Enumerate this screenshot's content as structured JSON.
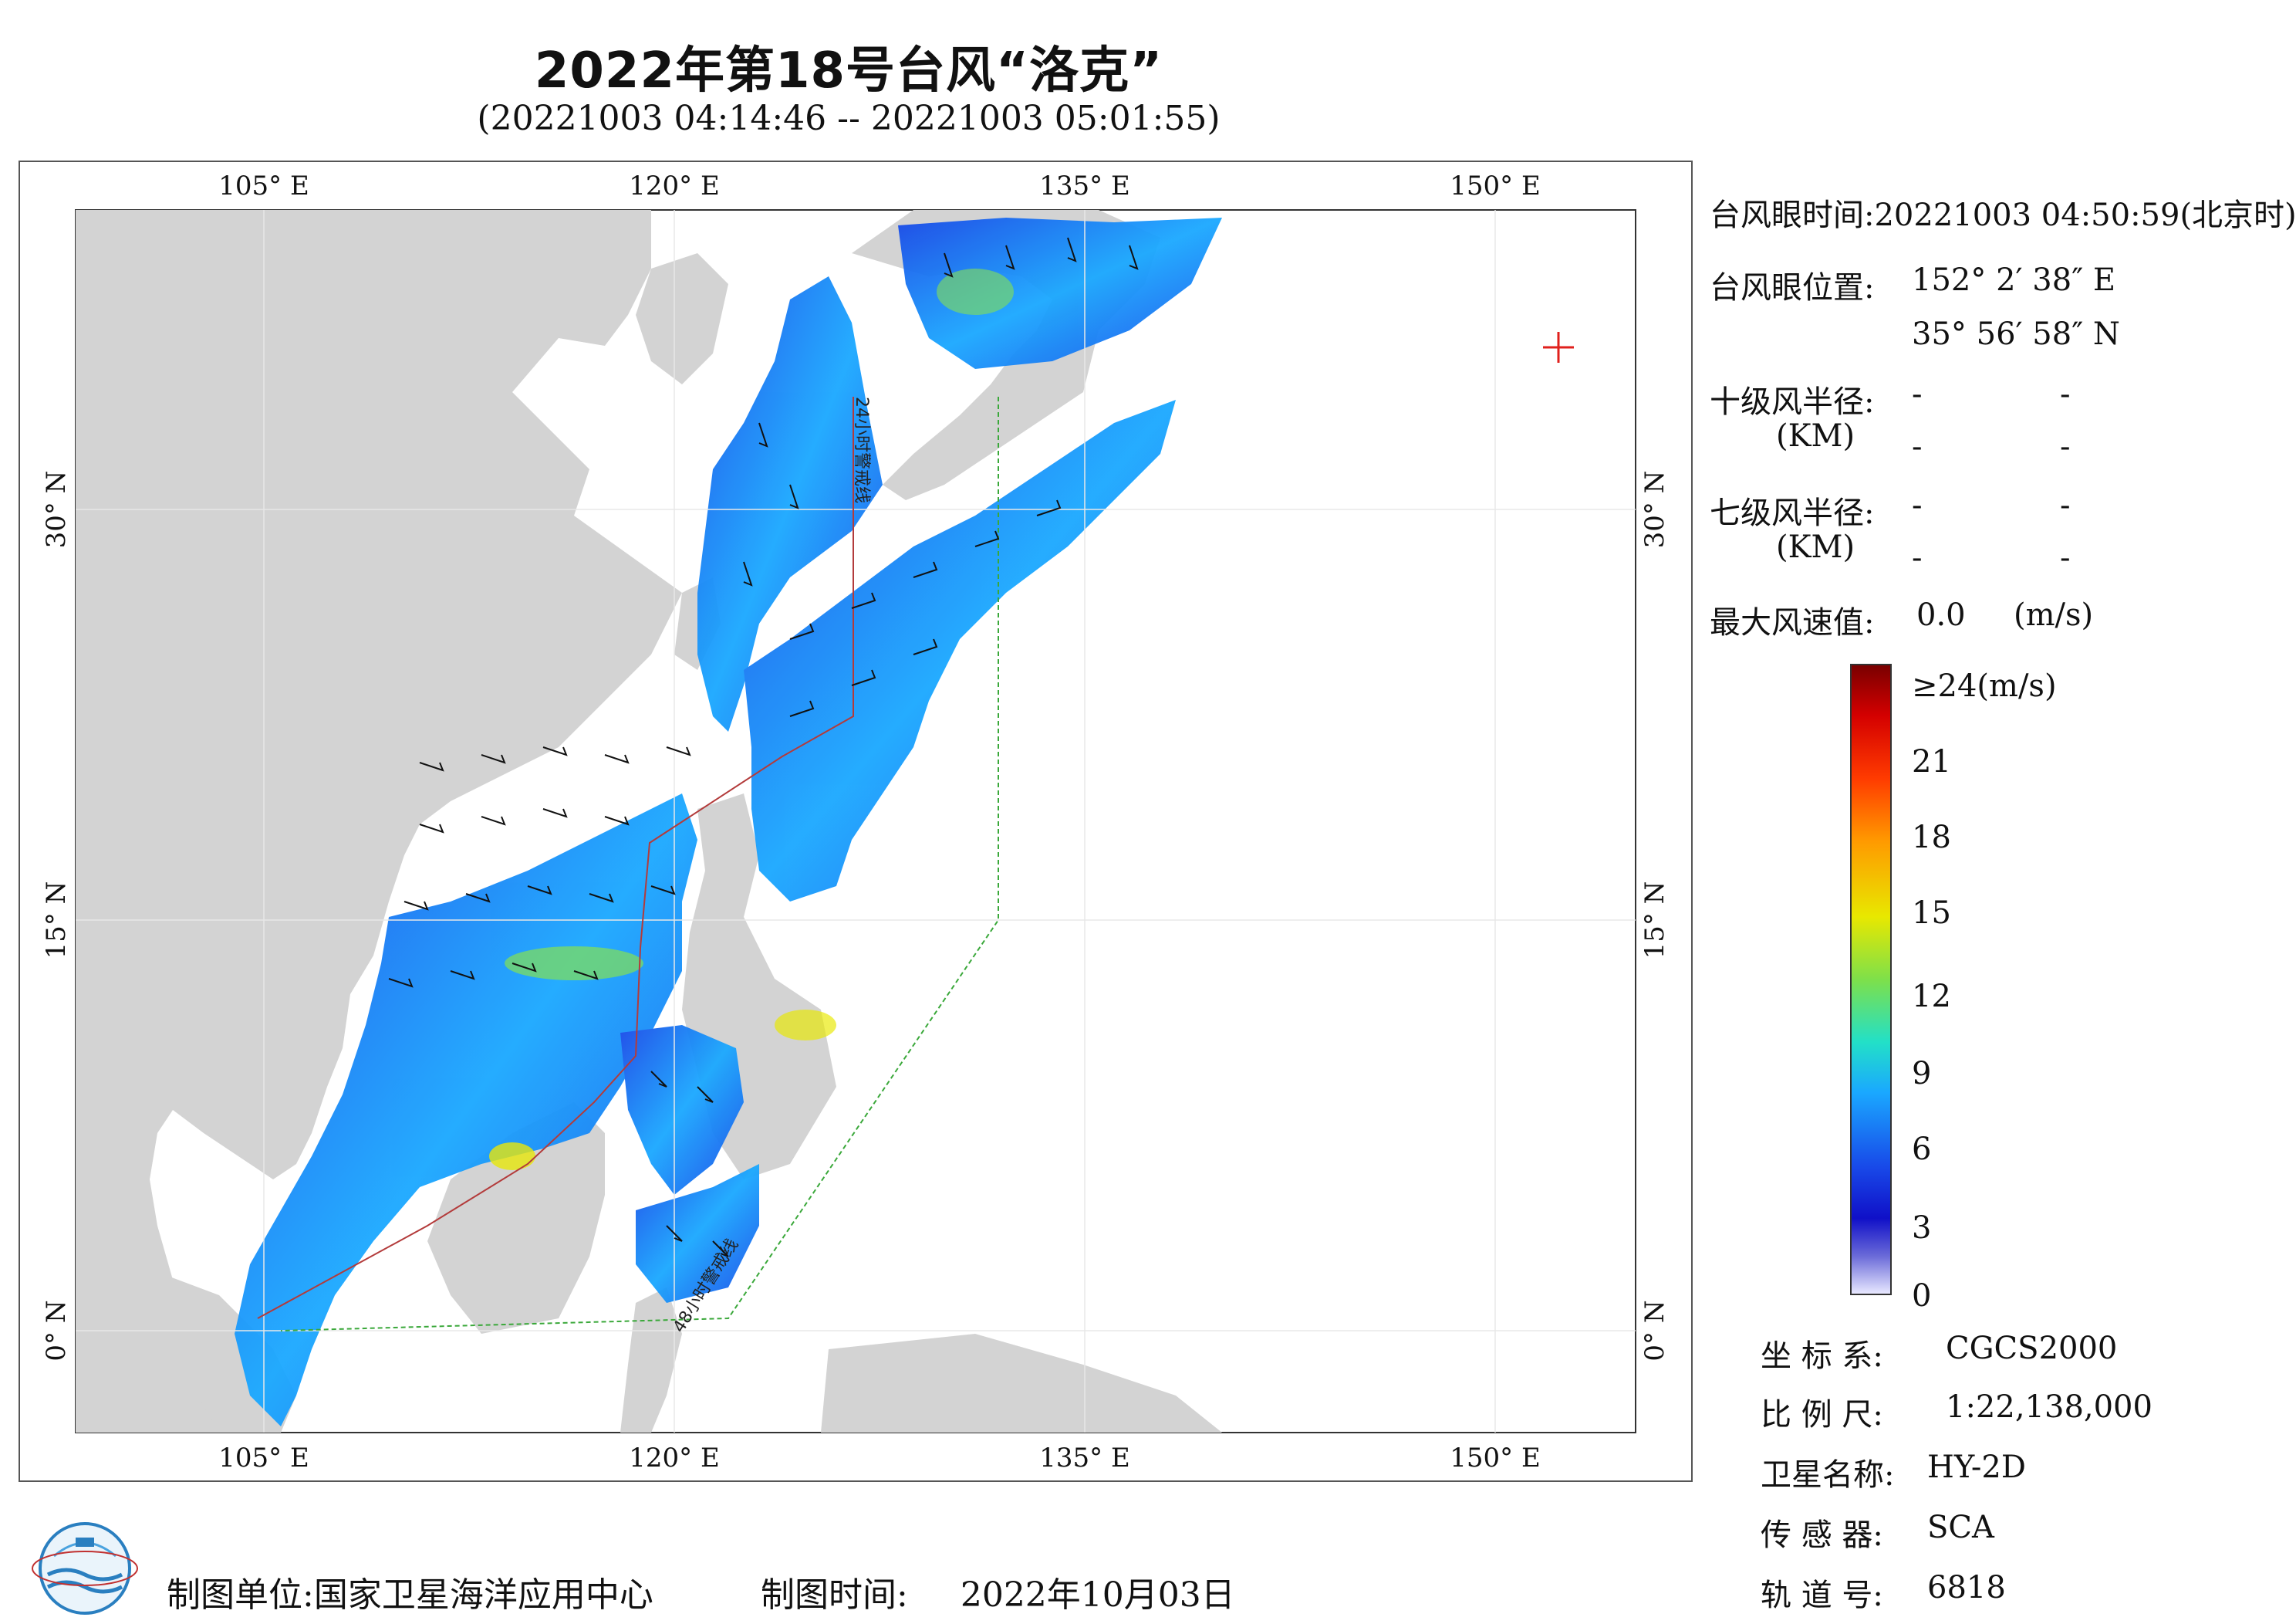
{
  "header": {
    "title": "2022年第18号台风“洛克”",
    "subtitle": "(20221003 04:14:46 -- 20221003 05:01:55)"
  },
  "map": {
    "lon_ticks": [
      "105° E",
      "120° E",
      "135° E",
      "150° E"
    ],
    "lat_ticks": [
      "30° N",
      "15° N",
      "0° N"
    ],
    "line_labels": {
      "warn24": "24小时警戒线",
      "warn48": "48小时警戒线"
    },
    "colors": {
      "land": "#d3d3d3",
      "sea": "#ffffff",
      "eye_marker": "#e0201c",
      "warn24": "#b33b3b",
      "warn48": "#3aa83a"
    }
  },
  "info": {
    "eye_time_label": "台风眼时间:",
    "eye_time_value": "20221003 04:50:59(北京时)",
    "eye_pos_label": "台风眼位置:",
    "eye_lon": "152° 2′ 38″ E",
    "eye_lat": "35° 56′ 58″ N",
    "r10_label": "十级风半径:",
    "r7_label": "七级风半径:",
    "km_label": "(KM)",
    "dash": "-",
    "max_wind_label": "最大风速值:",
    "max_wind_value": "0.0",
    "max_wind_unit": "(m/s)"
  },
  "colorbar": {
    "top_label": "≥24(m/s)",
    "ticks": [
      "21",
      "18",
      "15",
      "12",
      "9",
      "6",
      "3",
      "0"
    ],
    "stops": [
      "#7a0000",
      "#d40000",
      "#ff3b00",
      "#ff9a00",
      "#e8e800",
      "#7ee04a",
      "#22e0c8",
      "#1aa8ff",
      "#1848e8",
      "#1010c8",
      "#6a6ad8",
      "#e8e8ff"
    ]
  },
  "meta": {
    "crs_label": "坐 标 系:",
    "crs_value": "CGCS2000",
    "scale_label": "比 例 尺:",
    "scale_value": "1:22,138,000",
    "sat_label": "卫星名称:",
    "sat_value": "HY-2D",
    "sensor_label": "传 感 器:",
    "sensor_value": "SCA",
    "orbit_label": "轨 道 号:",
    "orbit_value": "6818"
  },
  "footer": {
    "unit_label": "制图单位:",
    "unit_value": "国家卫星海洋应用中心",
    "time_label": "制图时间:",
    "time_value": "2022年10月03日"
  }
}
